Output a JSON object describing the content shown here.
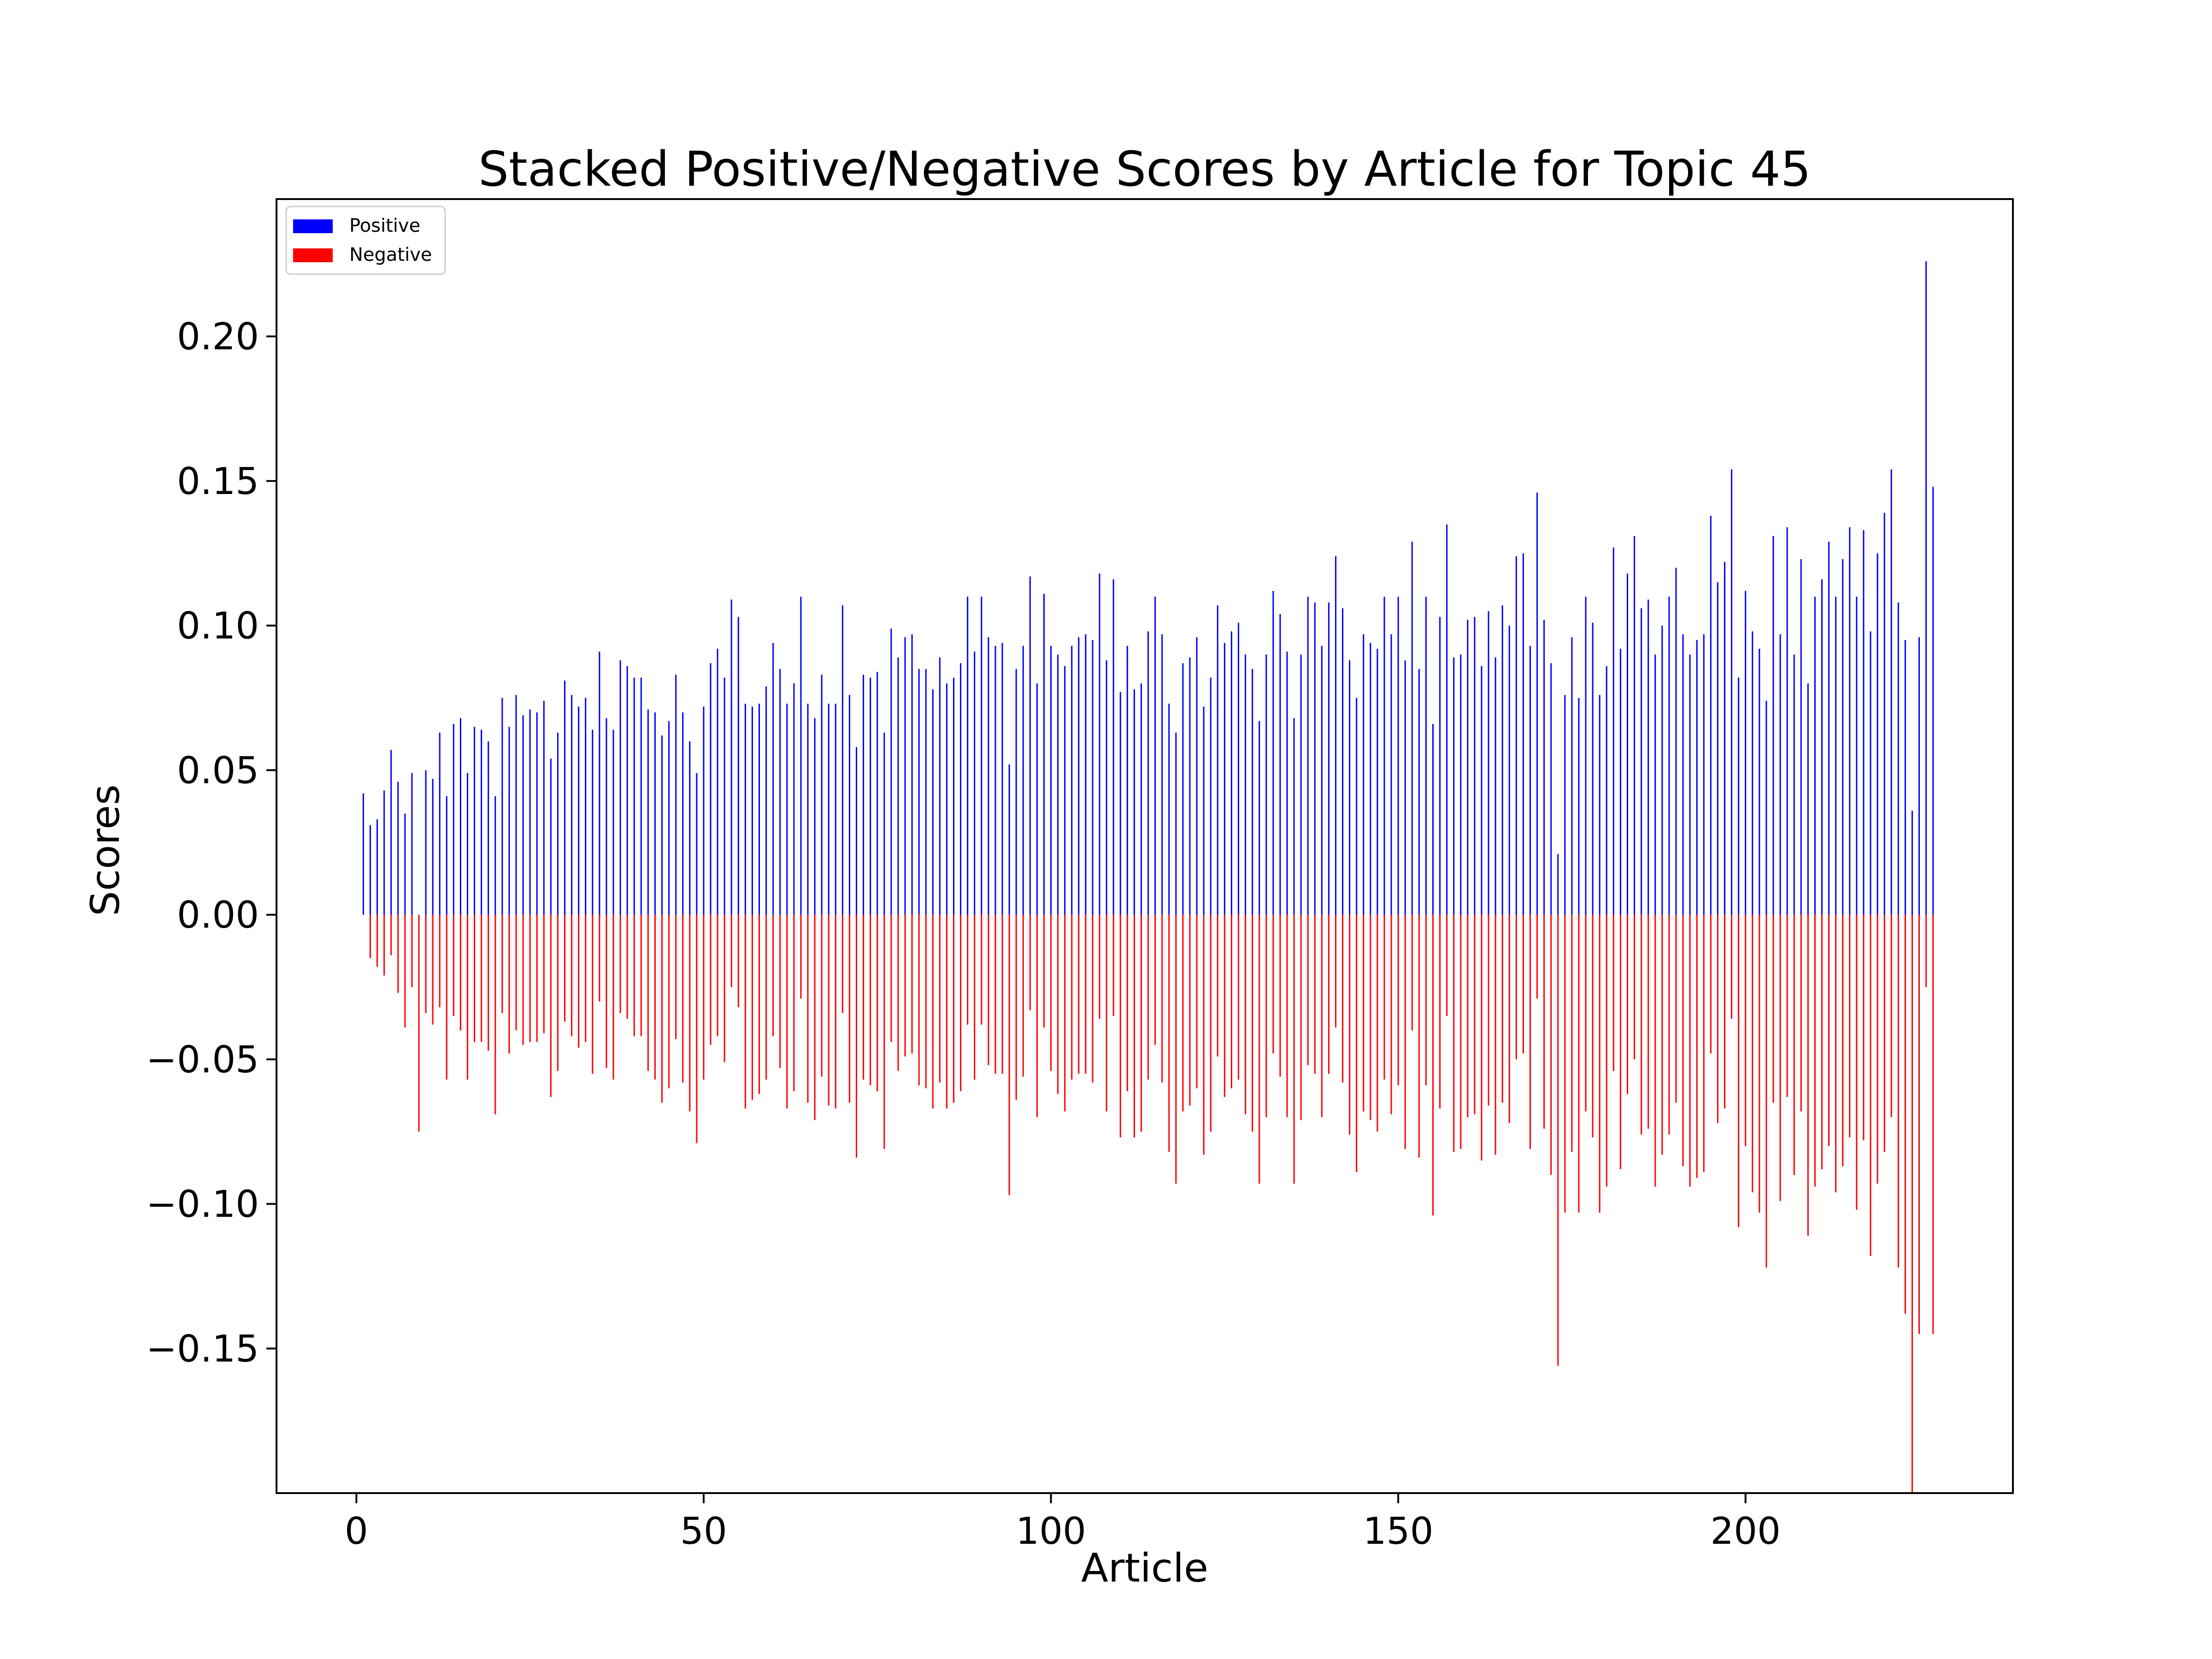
{
  "chart_data": {
    "type": "bar",
    "title": "Stacked Positive/Negative Scores by Article for Topic 45",
    "xlabel": "Article",
    "ylabel": "Scores",
    "xlim": [
      -11.5,
      238.5
    ],
    "ylim": [
      -0.2,
      0.2475
    ],
    "xticks": [
      0,
      50,
      100,
      150,
      200
    ],
    "xtick_labels": [
      "0",
      "50",
      "100",
      "150",
      "200"
    ],
    "yticks": [
      -0.15,
      -0.1,
      -0.05,
      0.0,
      0.05,
      0.1,
      0.15,
      0.2
    ],
    "ytick_labels": [
      "−0.15",
      "−0.10",
      "−0.05",
      "0.00",
      "0.05",
      "0.10",
      "0.15",
      "0.20"
    ],
    "grid": false,
    "legend": {
      "placement": "upper-left"
    },
    "x": [
      1,
      2,
      3,
      4,
      5,
      6,
      7,
      8,
      9,
      10,
      11,
      12,
      13,
      14,
      15,
      16,
      17,
      18,
      19,
      20,
      21,
      22,
      23,
      24,
      25,
      26,
      27,
      28,
      29,
      30,
      31,
      32,
      33,
      34,
      35,
      36,
      37,
      38,
      39,
      40,
      41,
      42,
      43,
      44,
      45,
      46,
      47,
      48,
      49,
      50,
      51,
      52,
      53,
      54,
      55,
      56,
      57,
      58,
      59,
      60,
      61,
      62,
      63,
      64,
      65,
      66,
      67,
      68,
      69,
      70,
      71,
      72,
      73,
      74,
      75,
      76,
      77,
      78,
      79,
      80,
      81,
      82,
      83,
      84,
      85,
      86,
      87,
      88,
      89,
      90,
      91,
      92,
      93,
      94,
      95,
      96,
      97,
      98,
      99,
      100,
      101,
      102,
      103,
      104,
      105,
      106,
      107,
      108,
      109,
      110,
      111,
      112,
      113,
      114,
      115,
      116,
      117,
      118,
      119,
      120,
      121,
      122,
      123,
      124,
      125,
      126,
      127,
      128,
      129,
      130,
      131,
      132,
      133,
      134,
      135,
      136,
      137,
      138,
      139,
      140,
      141,
      142,
      143,
      144,
      145,
      146,
      147,
      148,
      149,
      150,
      151,
      152,
      153,
      154,
      155,
      156,
      157,
      158,
      159,
      160,
      161,
      162,
      163,
      164,
      165,
      166,
      167,
      168,
      169,
      170,
      171,
      172,
      173,
      174,
      175,
      176,
      177,
      178,
      179,
      180,
      181,
      182,
      183,
      184,
      185,
      186,
      187,
      188,
      189,
      190,
      191,
      192,
      193,
      194,
      195,
      196,
      197,
      198,
      199,
      200,
      201,
      202,
      203,
      204,
      205,
      206,
      207,
      208,
      209,
      210,
      211,
      212,
      213,
      214,
      215,
      216,
      217,
      218,
      219,
      220,
      221,
      222,
      223,
      224,
      225,
      226,
      227
    ],
    "series": [
      {
        "name": "Positive",
        "color": "#0000ff",
        "values": [
          0.042,
          0.031,
          0.033,
          0.043,
          0.057,
          0.046,
          0.035,
          0.049,
          0.0,
          0.05,
          0.047,
          0.063,
          0.041,
          0.066,
          0.068,
          0.049,
          0.065,
          0.064,
          0.06,
          0.041,
          0.075,
          0.065,
          0.076,
          0.069,
          0.071,
          0.07,
          0.074,
          0.054,
          0.063,
          0.081,
          0.076,
          0.072,
          0.075,
          0.064,
          0.091,
          0.068,
          0.064,
          0.088,
          0.086,
          0.082,
          0.082,
          0.071,
          0.07,
          0.062,
          0.067,
          0.083,
          0.07,
          0.06,
          0.049,
          0.072,
          0.087,
          0.092,
          0.082,
          0.109,
          0.103,
          0.073,
          0.072,
          0.073,
          0.079,
          0.094,
          0.085,
          0.073,
          0.08,
          0.11,
          0.073,
          0.068,
          0.083,
          0.073,
          0.073,
          0.107,
          0.076,
          0.058,
          0.083,
          0.082,
          0.084,
          0.063,
          0.099,
          0.089,
          0.096,
          0.097,
          0.085,
          0.085,
          0.078,
          0.089,
          0.08,
          0.082,
          0.087,
          0.11,
          0.091,
          0.11,
          0.096,
          0.093,
          0.094,
          0.052,
          0.085,
          0.093,
          0.117,
          0.08,
          0.111,
          0.093,
          0.09,
          0.086,
          0.093,
          0.096,
          0.097,
          0.095,
          0.118,
          0.088,
          0.116,
          0.077,
          0.093,
          0.078,
          0.08,
          0.098,
          0.11,
          0.097,
          0.073,
          0.063,
          0.087,
          0.089,
          0.096,
          0.072,
          0.082,
          0.107,
          0.094,
          0.098,
          0.101,
          0.09,
          0.085,
          0.067,
          0.09,
          0.112,
          0.104,
          0.091,
          0.068,
          0.09,
          0.11,
          0.108,
          0.093,
          0.108,
          0.124,
          0.106,
          0.088,
          0.075,
          0.097,
          0.094,
          0.092,
          0.11,
          0.097,
          0.11,
          0.088,
          0.129,
          0.085,
          0.11,
          0.066,
          0.103,
          0.135,
          0.089,
          0.09,
          0.102,
          0.103,
          0.086,
          0.105,
          0.089,
          0.107,
          0.1,
          0.124,
          0.125,
          0.093,
          0.146,
          0.102,
          0.087,
          0.021,
          0.076,
          0.096,
          0.075,
          0.11,
          0.101,
          0.076,
          0.086,
          0.127,
          0.092,
          0.118,
          0.131,
          0.106,
          0.109,
          0.09,
          0.1,
          0.11,
          0.12,
          0.097,
          0.09,
          0.095,
          0.097,
          0.138,
          0.115,
          0.122,
          0.154,
          0.082,
          0.112,
          0.098,
          0.092,
          0.074,
          0.131,
          0.097,
          0.134,
          0.09,
          0.123,
          0.08,
          0.11,
          0.116,
          0.129,
          0.11,
          0.123,
          0.134,
          0.11,
          0.133,
          0.098,
          0.125,
          0.139,
          0.154,
          0.108,
          0.095,
          0.036,
          0.096,
          0.226,
          0.148
        ]
      },
      {
        "name": "Negative",
        "color": "#ff0000",
        "values": [
          0.0,
          -0.015,
          -0.018,
          -0.021,
          -0.014,
          -0.027,
          -0.039,
          -0.025,
          -0.075,
          -0.034,
          -0.038,
          -0.032,
          -0.057,
          -0.035,
          -0.04,
          -0.057,
          -0.044,
          -0.044,
          -0.047,
          -0.069,
          -0.034,
          -0.048,
          -0.04,
          -0.045,
          -0.044,
          -0.044,
          -0.041,
          -0.063,
          -0.054,
          -0.037,
          -0.042,
          -0.046,
          -0.044,
          -0.055,
          -0.03,
          -0.053,
          -0.057,
          -0.034,
          -0.036,
          -0.042,
          -0.042,
          -0.054,
          -0.057,
          -0.065,
          -0.06,
          -0.043,
          -0.058,
          -0.068,
          -0.079,
          -0.057,
          -0.045,
          -0.042,
          -0.051,
          -0.025,
          -0.032,
          -0.067,
          -0.064,
          -0.062,
          -0.057,
          -0.042,
          -0.053,
          -0.067,
          -0.061,
          -0.029,
          -0.065,
          -0.071,
          -0.056,
          -0.066,
          -0.067,
          -0.034,
          -0.065,
          -0.084,
          -0.057,
          -0.059,
          -0.061,
          -0.081,
          -0.044,
          -0.054,
          -0.049,
          -0.048,
          -0.059,
          -0.06,
          -0.067,
          -0.058,
          -0.067,
          -0.065,
          -0.061,
          -0.038,
          -0.057,
          -0.038,
          -0.052,
          -0.055,
          -0.055,
          -0.097,
          -0.064,
          -0.056,
          -0.033,
          -0.07,
          -0.039,
          -0.054,
          -0.062,
          -0.068,
          -0.057,
          -0.055,
          -0.055,
          -0.058,
          -0.036,
          -0.068,
          -0.035,
          -0.077,
          -0.061,
          -0.077,
          -0.075,
          -0.057,
          -0.045,
          -0.058,
          -0.082,
          -0.093,
          -0.068,
          -0.066,
          -0.06,
          -0.083,
          -0.075,
          -0.049,
          -0.063,
          -0.06,
          -0.057,
          -0.069,
          -0.075,
          -0.093,
          -0.07,
          -0.048,
          -0.056,
          -0.07,
          -0.093,
          -0.071,
          -0.052,
          -0.055,
          -0.07,
          -0.055,
          -0.039,
          -0.058,
          -0.076,
          -0.089,
          -0.068,
          -0.071,
          -0.075,
          -0.057,
          -0.069,
          -0.059,
          -0.081,
          -0.04,
          -0.084,
          -0.059,
          -0.104,
          -0.067,
          -0.035,
          -0.082,
          -0.081,
          -0.07,
          -0.069,
          -0.085,
          -0.066,
          -0.083,
          -0.065,
          -0.072,
          -0.05,
          -0.048,
          -0.081,
          -0.029,
          -0.074,
          -0.09,
          -0.156,
          -0.103,
          -0.082,
          -0.103,
          -0.068,
          -0.077,
          -0.103,
          -0.094,
          -0.054,
          -0.088,
          -0.062,
          -0.05,
          -0.076,
          -0.074,
          -0.094,
          -0.083,
          -0.076,
          -0.065,
          -0.087,
          -0.094,
          -0.091,
          -0.089,
          -0.048,
          -0.072,
          -0.067,
          -0.036,
          -0.108,
          -0.08,
          -0.096,
          -0.103,
          -0.122,
          -0.065,
          -0.099,
          -0.063,
          -0.09,
          -0.068,
          -0.111,
          -0.094,
          -0.088,
          -0.08,
          -0.096,
          -0.087,
          -0.077,
          -0.102,
          -0.078,
          -0.118,
          -0.093,
          -0.082,
          -0.07,
          -0.122,
          -0.138,
          -0.2,
          -0.145,
          -0.025,
          -0.145
        ]
      }
    ]
  }
}
